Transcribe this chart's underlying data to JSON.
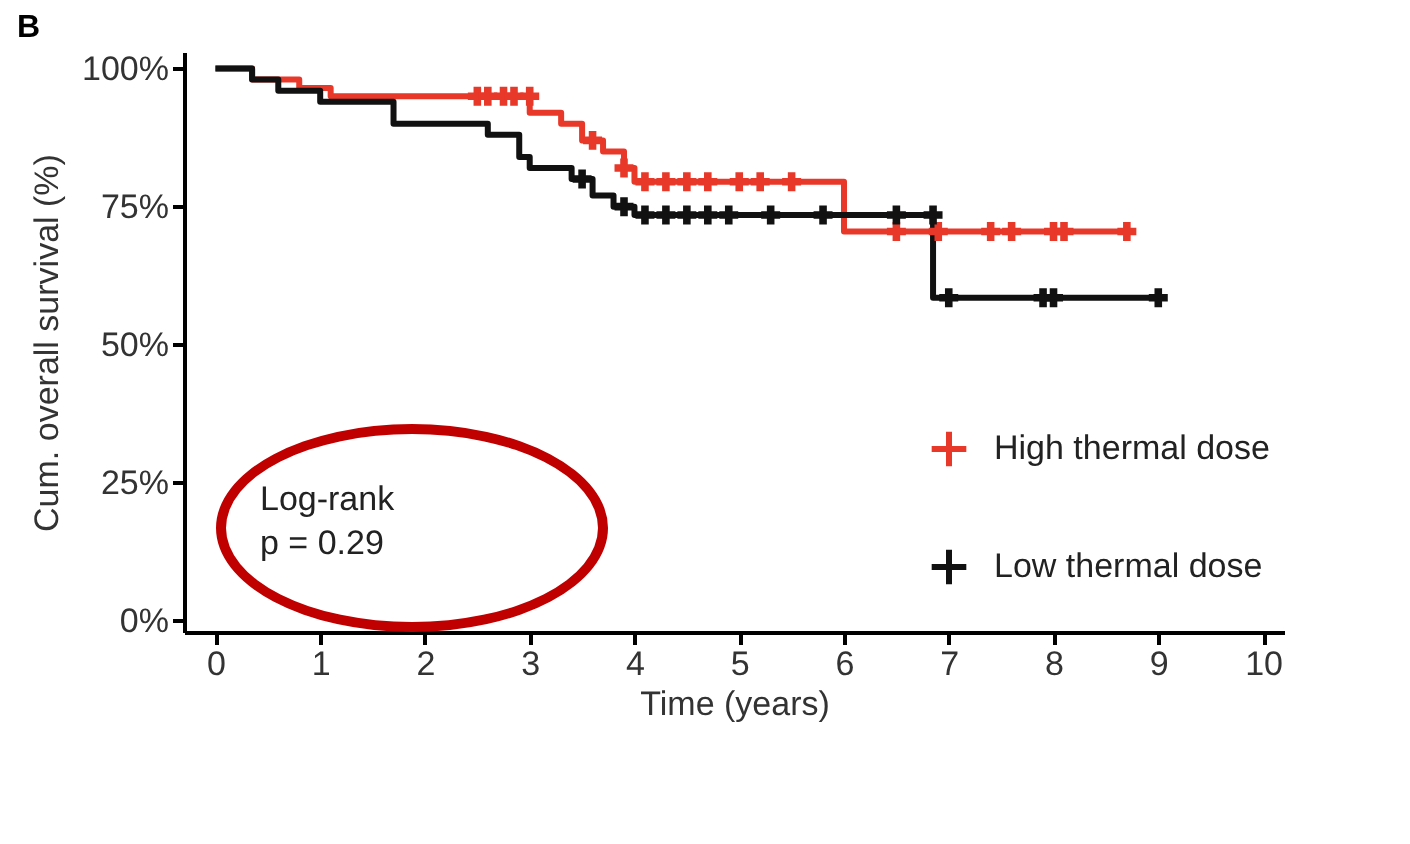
{
  "chart_data": {
    "type": "step",
    "title": "B",
    "xlabel": "Time (years)",
    "ylabel": "Cum. overall survival (%)",
    "xlim": [
      -0.3,
      10.2
    ],
    "xticks": [
      0,
      1,
      2,
      3,
      4,
      5,
      6,
      7,
      8,
      9,
      10
    ],
    "ylim": [
      -2,
      103
    ],
    "yticks": [
      {
        "value": 0,
        "label": "0%"
      },
      {
        "value": 25,
        "label": "25%"
      },
      {
        "value": 50,
        "label": "50%"
      },
      {
        "value": 75,
        "label": "75%"
      },
      {
        "value": 100,
        "label": "100%"
      }
    ],
    "legend": "bottom right",
    "grid": false,
    "annotations": [
      "Log-rank\np = 0.29"
    ],
    "series": [
      {
        "name": "High thermal dose",
        "color": "#e8382a",
        "x": [
          0,
          0.35,
          0.8,
          1.1,
          3.0,
          3.3,
          3.5,
          3.7,
          3.9,
          4.0,
          6.0,
          8.7
        ],
        "values": [
          100,
          98,
          96.5,
          95,
          92,
          90,
          87,
          85,
          82,
          79.5,
          70.5,
          70.5
        ]
      },
      {
        "name": "Low thermal dose",
        "color": "#111111",
        "x": [
          0,
          0.35,
          0.6,
          1.0,
          1.7,
          2.6,
          2.9,
          3.0,
          3.4,
          3.6,
          3.8,
          4.0,
          6.85,
          9.0
        ],
        "values": [
          100,
          98,
          96,
          94,
          90,
          88,
          84,
          82,
          80,
          77,
          75,
          73.5,
          58.5,
          58.5
        ]
      },
      {
        "type": "scatter",
        "marker": "cross",
        "color": "#e8382a",
        "x": [
          2.5,
          2.6,
          2.75,
          2.85,
          3.0,
          3.6,
          3.9,
          4.1,
          4.3,
          4.5,
          4.7,
          5.0,
          5.2,
          5.5,
          6.5,
          6.9,
          7.4,
          7.6,
          8.0,
          8.1,
          8.7
        ],
        "values": [
          95,
          95,
          95,
          95,
          95,
          87,
          82,
          79.5,
          79.5,
          79.5,
          79.5,
          79.5,
          79.5,
          79.5,
          70.5,
          70.5,
          70.5,
          70.5,
          70.5,
          70.5,
          70.5
        ]
      },
      {
        "type": "scatter",
        "marker": "cross",
        "color": "#111111",
        "x": [
          3.5,
          3.9,
          4.1,
          4.3,
          4.5,
          4.7,
          4.9,
          5.3,
          5.8,
          6.5,
          6.85,
          7.0,
          7.9,
          8.0,
          9.0
        ],
        "values": [
          80,
          75,
          73.5,
          73.5,
          73.5,
          73.5,
          73.5,
          73.5,
          73.5,
          73.5,
          73.5,
          58.5,
          58.5,
          58.5,
          58.5
        ]
      }
    ]
  }
}
